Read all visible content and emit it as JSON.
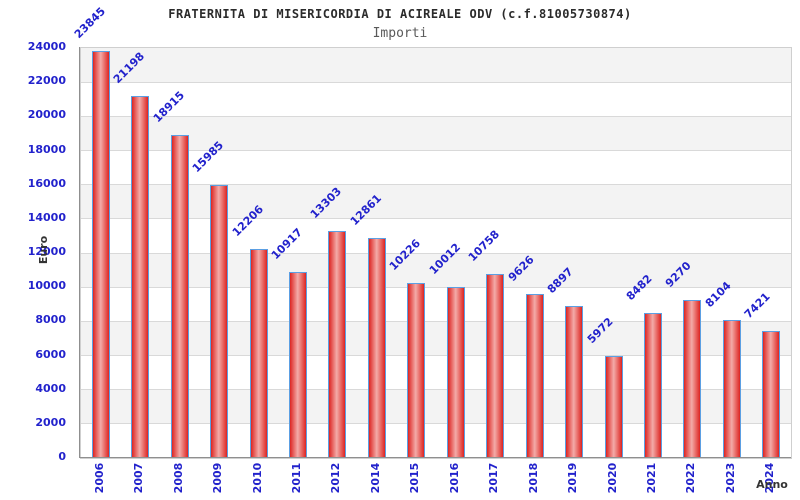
{
  "header": {
    "title": "FRATERNITA DI MISERICORDIA DI ACIREALE ODV (c.f.81005730874)",
    "subtitle": "Importi"
  },
  "chart_data": {
    "type": "bar",
    "title": "FRATERNITA DI MISERICORDIA DI ACIREALE ODV (c.f.81005730874)",
    "subtitle": "Importi",
    "xlabel": "Anno",
    "ylabel": "Euro",
    "categories": [
      "2006",
      "2007",
      "2008",
      "2009",
      "2010",
      "2011",
      "2012",
      "2014",
      "2015",
      "2016",
      "2017",
      "2018",
      "2019",
      "2020",
      "2021",
      "2022",
      "2023",
      "2024"
    ],
    "values": [
      23845,
      21198,
      18915,
      15985,
      12206,
      10917,
      13303,
      12861,
      10226,
      10012,
      10758,
      9626,
      8897,
      5972,
      8482,
      9270,
      8104,
      7421
    ],
    "ylim": [
      0,
      24000
    ],
    "ytick_step": 2000,
    "grid": true,
    "band_fill": "alternating",
    "legend": "none",
    "colors": {
      "bar_fill": "#dd2522",
      "bar_highlight": "#f3aba8",
      "bar_border": "#5b9fe3",
      "label_text": "#2222cc",
      "tick_text": "#2222cc",
      "band_gray": "#f3f3f3",
      "band_white": "#ffffff",
      "gridline": "#d9d9d9",
      "axis_title_text": "#333333"
    }
  }
}
